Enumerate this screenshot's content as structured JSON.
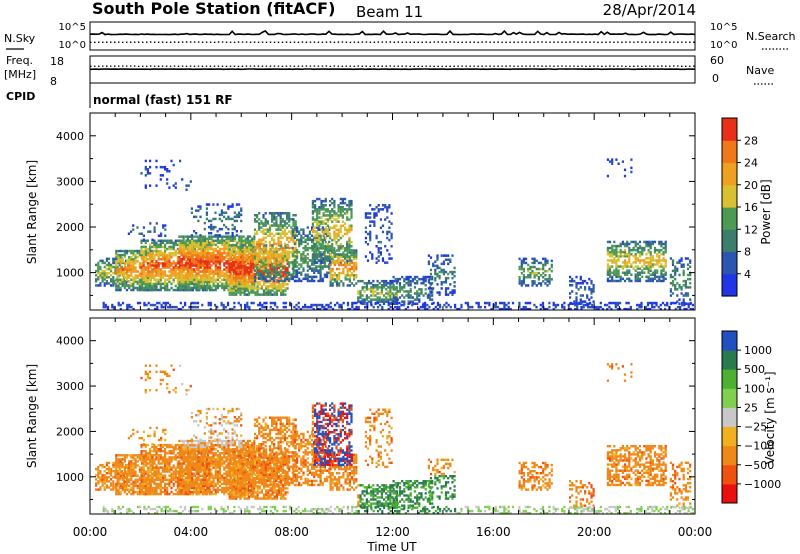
{
  "header": {
    "station": "South Pole Station (fitACF)",
    "beam": "Beam 11",
    "date": "28/Apr/2014"
  },
  "top_panels": {
    "nsky_label": "N.Sky",
    "nsearch_label": "N.Search",
    "noise_ticks": [
      "10^5",
      "10^0"
    ],
    "freq_label_1": "Freq.",
    "freq_label_2": "[MHz]",
    "freq_ticks": [
      "18",
      "8"
    ],
    "nave_label": "Nave",
    "nave_ticks": [
      "60",
      "0"
    ],
    "cpid_label": "CPID",
    "cpid_text": "normal (fast) 151 RF"
  },
  "colors": {
    "power_scale": [
      "#1f35e6",
      "#2a55b0",
      "#3c7d6e",
      "#4c9a54",
      "#d8c030",
      "#f0a020",
      "#f07818",
      "#e83018"
    ],
    "velocity_scale": [
      "#2350c0",
      "#2a7a50",
      "#4cb030",
      "#80d050",
      "#c8c8c8",
      "#f0b020",
      "#f08818",
      "#f05010",
      "#e81010"
    ]
  },
  "chart_data": [
    {
      "type": "heatmap",
      "name": "power",
      "ylabel": "Slant Range [km]",
      "yticks": [
        "4000",
        "3000",
        "2000",
        "1000"
      ],
      "ylim": [
        180,
        4500
      ],
      "xlim_hours": [
        0,
        24
      ],
      "colorbar_label": "Power [dB]",
      "colorbar_ticks": [
        "28",
        "24",
        "20",
        "16",
        "12",
        "8",
        "4"
      ],
      "color_range": [
        0,
        30
      ]
    },
    {
      "type": "heatmap",
      "name": "velocity",
      "ylabel": "Slant Range [km]",
      "yticks": [
        "4000",
        "3000",
        "2000",
        "1000"
      ],
      "ylim": [
        180,
        4500
      ],
      "xlim_hours": [
        0,
        24
      ],
      "colorbar_label": "Velocity [m s⁻¹]",
      "colorbar_ticks": [
        "1000",
        "500",
        "100",
        "25",
        "−25",
        "−100",
        "−500",
        "−1000"
      ],
      "color_range": [
        -1000,
        1000
      ]
    }
  ],
  "xaxis": {
    "ticks": [
      "00:00",
      "04:00",
      "08:00",
      "12:00",
      "16:00",
      "20:00",
      "00:00"
    ],
    "label": "Time UT"
  }
}
